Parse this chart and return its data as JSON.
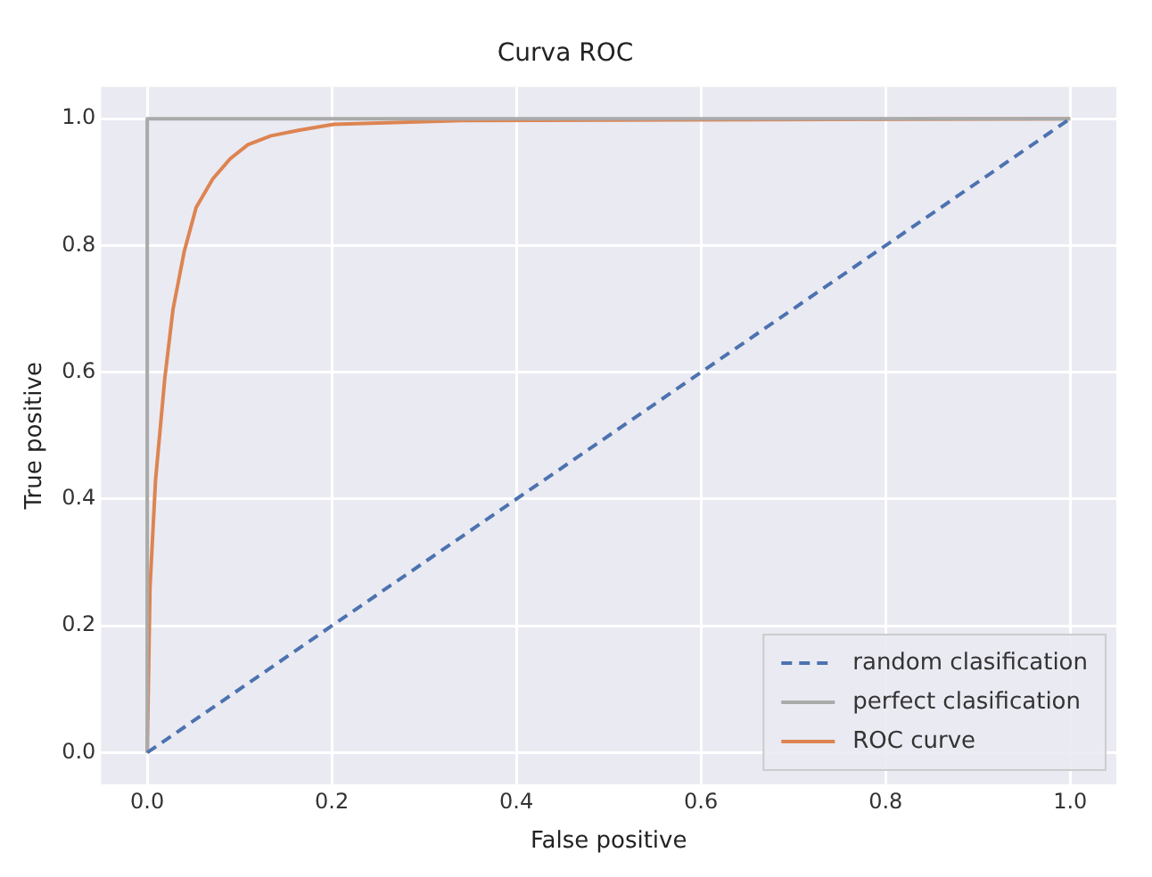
{
  "chart_data": {
    "type": "line",
    "title": "Curva ROC",
    "xlabel": "False positive",
    "ylabel": "True positive",
    "xlim": [
      -0.05,
      1.05
    ],
    "ylim": [
      -0.05,
      1.05
    ],
    "xticks": [
      {
        "value": 0,
        "label": "0.0"
      },
      {
        "value": 0.2,
        "label": "0.2"
      },
      {
        "value": 0.4,
        "label": "0.4"
      },
      {
        "value": 0.6,
        "label": "0.6"
      },
      {
        "value": 0.8,
        "label": "0.8"
      },
      {
        "value": 1,
        "label": "1.0"
      }
    ],
    "yticks": [
      {
        "value": 0,
        "label": "0.0"
      },
      {
        "value": 0.2,
        "label": "0.2"
      },
      {
        "value": 0.4,
        "label": "0.4"
      },
      {
        "value": 0.6,
        "label": "0.6"
      },
      {
        "value": 0.8,
        "label": "0.8"
      },
      {
        "value": 1,
        "label": "1.0"
      }
    ],
    "grid": true,
    "legend": "bottom right",
    "marker": "none",
    "series": [
      {
        "name": "random clasification",
        "color": "#4c72b0",
        "line_style": "dashed",
        "x": [
          0,
          1
        ],
        "values": [
          0,
          1
        ]
      },
      {
        "name": "perfect clasification",
        "color": "#aaaaaa",
        "x": [
          0,
          0,
          1
        ],
        "values": [
          0,
          1,
          1
        ]
      },
      {
        "name": "ROC curve",
        "color": "#dd8452",
        "x": [
          0,
          0.003,
          0.009,
          0.019,
          0.028,
          0.04,
          0.053,
          0.071,
          0.09,
          0.109,
          0.134,
          0.165,
          0.202,
          0.34,
          1
        ],
        "values": [
          0,
          0.26,
          0.43,
          0.59,
          0.7,
          0.79,
          0.86,
          0.905,
          0.937,
          0.959,
          0.973,
          0.982,
          0.991,
          0.997,
          1
        ]
      }
    ]
  }
}
